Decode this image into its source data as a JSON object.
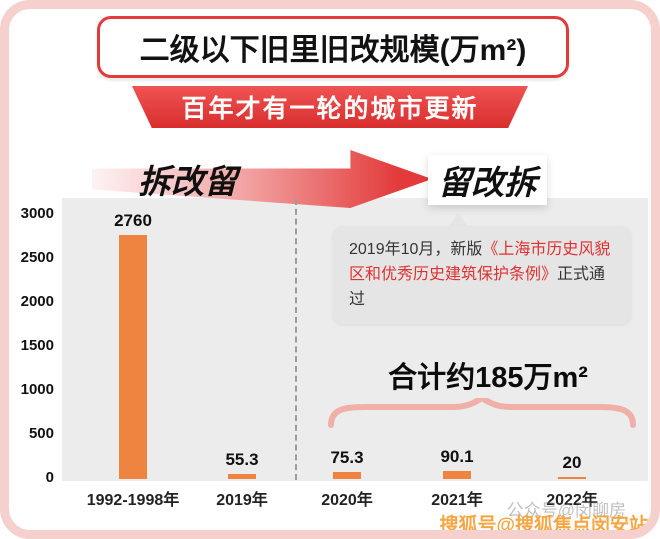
{
  "title": "二级以下旧里旧改规模(万m²)",
  "banner": "百年才有一轮的城市更新",
  "era_left": "拆改留",
  "era_right": "留改拆",
  "note": {
    "prefix": "2019年10月，新版",
    "highlight": "《上海市历史风貌区和优秀历史建筑保护条例》",
    "suffix": "正式通过"
  },
  "total_label": "合计约185万m²",
  "watermark_primary": "搜狐号@搜狐焦点闵安站",
  "watermark_secondary": "公众号@闵聊房",
  "colors": {
    "bar": "#EF8340",
    "accent_red": "#E23B3B",
    "banner_red": "#D92E2E",
    "frame_pink": "#F6D0CC",
    "plot_gray": "#ECECEC",
    "brace_pink": "#F0B0A8",
    "watermark_orange": "#F6A643"
  },
  "chart_data": {
    "type": "bar",
    "title": "二级以下旧里旧改规模(万m²)",
    "categories": [
      "1992-1998年",
      "2019年",
      "2020年",
      "2021年",
      "2022年"
    ],
    "values": [
      2760,
      55.3,
      75.3,
      90.1,
      20
    ],
    "value_labels": [
      "2760",
      "55.3",
      "75.3",
      "90.1",
      "20"
    ],
    "yticks": [
      3000,
      2500,
      2000,
      1500,
      1000,
      500,
      0
    ],
    "ylim": [
      0,
      3000
    ],
    "grid": false,
    "legend": false,
    "annotations": [
      "合计约185万m²",
      "2019年10月，新版《上海市历史风貌区和优秀历史建筑保护条例》正式通过"
    ]
  }
}
